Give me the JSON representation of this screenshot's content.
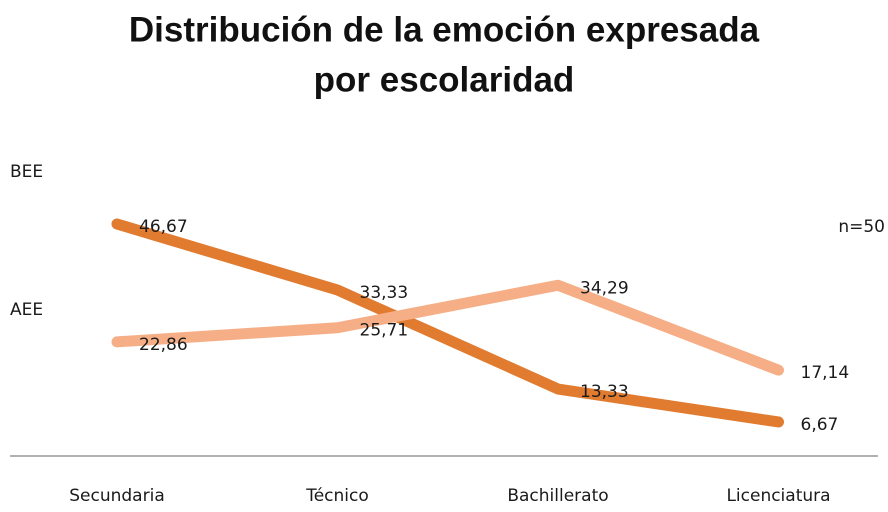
{
  "chart_data": {
    "type": "line",
    "title": [
      "Distribución de la emoción expresada",
      "por escolaridad"
    ],
    "annotation": "n=50",
    "categories": [
      "Secundaria",
      "Técnico",
      "Bachillerato",
      "Licenciatura"
    ],
    "series": [
      {
        "name": "BEE",
        "color": "#e07b2f",
        "values": [
          46.67,
          33.33,
          13.33,
          6.67
        ],
        "value_labels": [
          "46,67",
          "33,33",
          "13,33",
          "6,67"
        ]
      },
      {
        "name": "AEE",
        "color": "#f6ae86",
        "values": [
          22.86,
          25.71,
          34.29,
          17.14
        ],
        "value_labels": [
          "22,86",
          "25,71",
          "34,29",
          "17,14"
        ]
      }
    ],
    "ylim": [
      0,
      60
    ]
  }
}
